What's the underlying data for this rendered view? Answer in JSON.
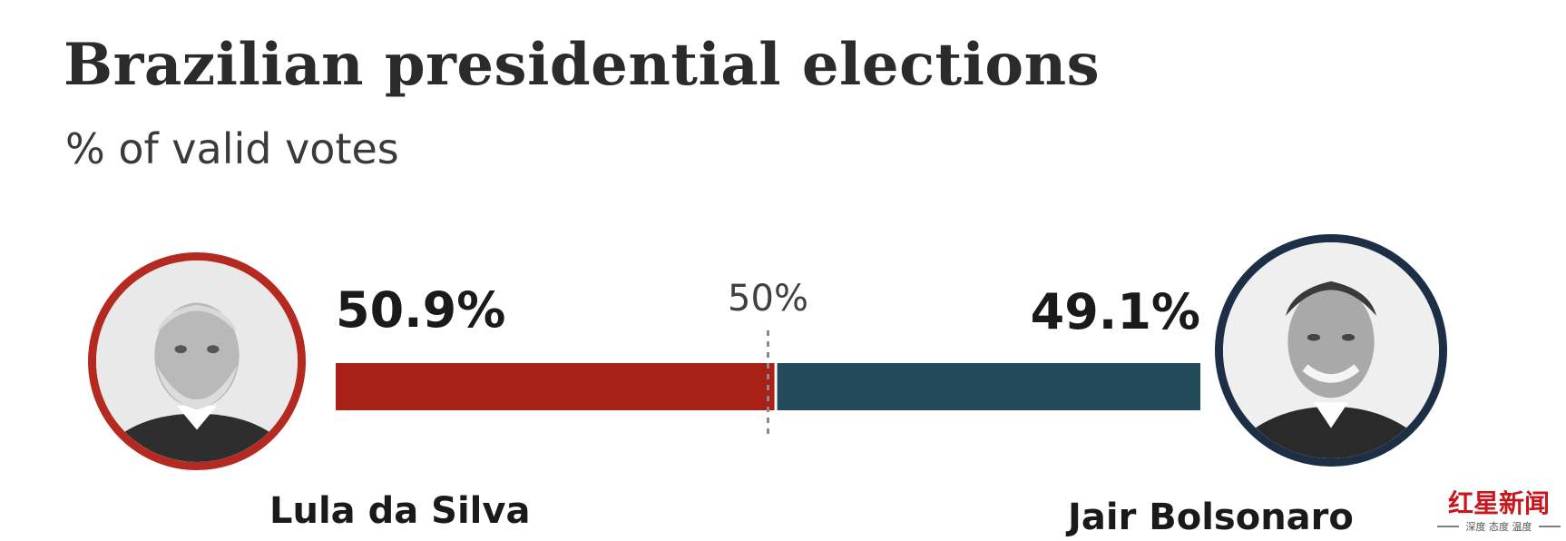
{
  "title": "Brazilian presidential elections",
  "subtitle": "% of valid votes",
  "chart_data": {
    "type": "bar",
    "orientation": "horizontal-stacked",
    "title": "Brazilian presidential elections",
    "subtitle": "% of valid votes",
    "xlim": [
      0,
      100
    ],
    "reference_line": {
      "value": 50,
      "label": "50%"
    },
    "series": [
      {
        "name": "Lula da Silva",
        "value": 50.9,
        "label": "50.9%",
        "color": "#a82117"
      },
      {
        "name": "Jair Bolsonaro",
        "value": 49.1,
        "label": "49.1%",
        "color": "#234a5a"
      }
    ]
  },
  "candidates": {
    "left": {
      "name": "Lula da Silva",
      "ring_color": "#b52a20"
    },
    "right": {
      "name": "Jair Bolsonaro",
      "ring_color": "#1c2f47"
    }
  },
  "watermark": {
    "logo_text": "红星新闻",
    "tagline": "深度 态度 温度",
    "color": "#c9161d"
  }
}
